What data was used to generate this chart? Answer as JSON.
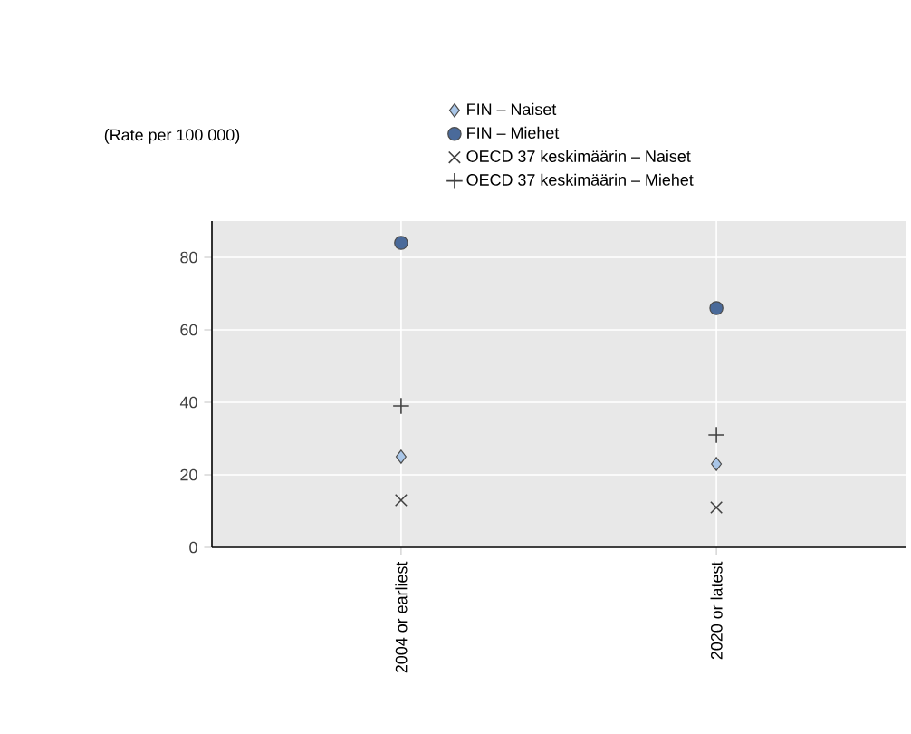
{
  "chart_data": {
    "type": "scatter",
    "ylabel": "(Rate per 100 000)",
    "categories": [
      "2004 or earliest",
      "2020 or latest"
    ],
    "series": [
      {
        "name": "FIN – Naiset",
        "color": "#a9c6e8",
        "marker": "diamond",
        "values": [
          25,
          23
        ]
      },
      {
        "name": "FIN – Miehet",
        "color": "#4a6a9a",
        "marker": "circle",
        "values": [
          84,
          66
        ]
      },
      {
        "name": "OECD 37 keskimäärin – Naiset",
        "color": "#404040",
        "marker": "cross",
        "values": [
          13,
          11
        ]
      },
      {
        "name": "OECD 37 keskimäärin – Miehet",
        "color": "#404040",
        "marker": "plus",
        "values": [
          39,
          31
        ]
      }
    ],
    "ylim": [
      0,
      90
    ],
    "yticks": [
      0,
      20,
      40,
      60,
      80
    ],
    "grid": true,
    "legend": "top"
  }
}
